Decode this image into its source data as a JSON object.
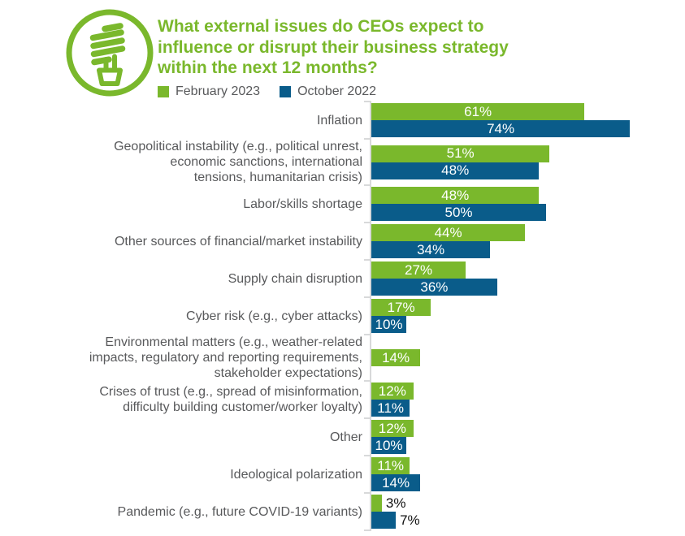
{
  "header": {
    "title": "What external issues do CEOs expect to\ninfluence or disrupt their business strategy\nwithin the next 12 months?",
    "title_color": "#7AB82C",
    "icon": "cfl-bulb-icon"
  },
  "legend": {
    "items": [
      {
        "label": "February 2023",
        "color": "#7AB82C"
      },
      {
        "label": "October 2022",
        "color": "#0A5C8A"
      }
    ]
  },
  "chart_data": {
    "type": "bar",
    "orientation": "horizontal",
    "title": "What external issues do CEOs expect to influence or disrupt their business strategy within the next 12 months?",
    "legend_position": "top",
    "grid": false,
    "xlim": [
      0,
      90
    ],
    "value_suffix": "%",
    "categories": [
      "Inflation",
      "Geopolitical instability (e.g., political unrest,\neconomic sanctions, international\ntensions, humanitarian crisis)",
      "Labor/skills shortage",
      "Other sources of financial/market instability",
      "Supply chain disruption",
      "Cyber risk (e.g., cyber attacks)",
      "Environmental matters (e.g., weather-related\nimpacts, regulatory and reporting requirements,\nstakeholder expectations)",
      "Crises of trust (e.g., spread of misinformation,\ndifficulty building customer/worker loyalty)",
      "Other",
      "Ideological polarization",
      "Pandemic (e.g., future COVID-19 variants)"
    ],
    "series": [
      {
        "name": "February 2023",
        "color": "#7AB82C",
        "values": [
          61,
          51,
          48,
          44,
          27,
          17,
          14,
          12,
          12,
          11,
          3
        ]
      },
      {
        "name": "October 2022",
        "color": "#0A5C8A",
        "values": [
          74,
          48,
          50,
          34,
          36,
          10,
          null,
          11,
          10,
          14,
          7
        ]
      }
    ],
    "colors": {
      "axis": "#D8D9DA",
      "label_text": "#58595B",
      "value_in": "#ffffff",
      "value_out": "#111111"
    }
  }
}
